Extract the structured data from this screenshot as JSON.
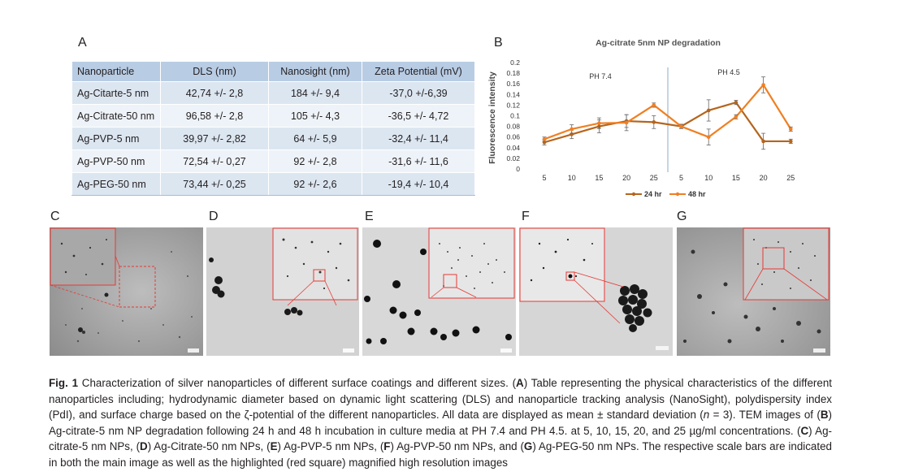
{
  "panel_labels": {
    "a": "A",
    "b": "B",
    "c": "C",
    "d": "D",
    "e": "E",
    "f": "F",
    "g": "G"
  },
  "table": {
    "headers": [
      "Nanoparticle",
      "DLS (nm)",
      "Nanosight (nm)",
      "Zeta Potential (mV)"
    ],
    "rows": [
      [
        "Ag-Citarte-5 nm",
        "42,74 +/- 2,8",
        "184 +/- 9,4",
        "-37,0 +/-6,39"
      ],
      [
        "Ag-Citrate-50 nm",
        "96,58 +/- 2,8",
        "105 +/- 4,3",
        "-36,5 +/- 4,72"
      ],
      [
        "Ag-PVP-5 nm",
        "39,97 +/- 2,82",
        "64 +/- 5,9",
        "-32,4 +/- 11,4"
      ],
      [
        "Ag-PVP-50 nm",
        "72,54 +/- 0,27",
        "92 +/- 2,8",
        "-31,6 +/- 11,6"
      ],
      [
        "Ag-PEG-50 nm",
        "73,44 +/- 0,25",
        "92 +/- 2,6",
        "-19,4 +/- 10,4"
      ]
    ]
  },
  "chart_data": {
    "type": "line",
    "title": "Ag-citrate 5nm NP degradation",
    "ylabel": "Fluorescence intensity",
    "xlabel": "",
    "ylim": [
      0,
      0.2
    ],
    "yticks": [
      "0",
      "0.02",
      "0.04",
      "0.06",
      "0.08",
      "0.1",
      "0.12",
      "0.14",
      "0.16",
      "0.18",
      "0.2"
    ],
    "categories": [
      "5",
      "10",
      "15",
      "20",
      "25",
      "5",
      "10",
      "15",
      "20",
      "25"
    ],
    "annotations": [
      "PH 7.4",
      "PH 4.5"
    ],
    "legend_position": "bottom",
    "series": [
      {
        "name": "24 hr",
        "color": "#b5651d",
        "values": [
          0.05,
          0.065,
          0.08,
          0.09,
          0.088,
          0.08,
          0.11,
          0.125,
          0.052,
          0.052
        ],
        "errors": [
          0.005,
          0.008,
          0.012,
          0.012,
          0.012,
          0.004,
          0.02,
          0.004,
          0.015,
          0.004
        ]
      },
      {
        "name": "48 hr",
        "color": "#f07f22",
        "values": [
          0.056,
          0.075,
          0.086,
          0.087,
          0.12,
          0.08,
          0.06,
          0.098,
          0.158,
          0.075
        ],
        "errors": [
          0.004,
          0.008,
          0.01,
          0.015,
          0.004,
          0.004,
          0.015,
          0.004,
          0.015,
          0.004
        ]
      }
    ]
  },
  "caption": {
    "fig_label": "Fig. 1",
    "part1": " Characterization of silver nanoparticles of different surface coatings and different sizes. (",
    "A": "A",
    "part2": ") Table representing the physical characteristics of the different nanoparticles including; hydrodynamic diameter based on dynamic light scattering (DLS) and nanoparticle tracking analysis (NanoSight), polydispersity index (PdI), and surface charge based on the ζ-potential of the different nanoparticles. All data are displayed as mean ± standard deviation (",
    "n": "n",
    "part3": " = 3). TEM images of (",
    "B": "B",
    "part4": ") Ag-citrate-5 nm NP degradation following 24 h and 48 h incubation in culture media at PH 7.4 and PH 4.5. at 5, 10, 15, 20, and 25 µg/ml concentrations. (",
    "C": "C",
    "part5": ") Ag-citrate-5 nm NPs, (",
    "D": "D",
    "part6": ") Ag-Citrate-50 nm NPs, (",
    "E": "E",
    "part7": ") Ag-PVP-5 nm NPs, (",
    "F": "F",
    "part8": ") Ag-PVP-50 nm NPs, and (",
    "G": "G",
    "part9": ") Ag-PEG-50 nm NPs. The respective scale bars are indicated in both the main image as well as the highlighted (red square) magnified high resolution images"
  },
  "colors": {
    "table_header": "#b8cce4",
    "table_row_a": "#dce6f1",
    "table_row_b": "#eef3f9",
    "highlight": "#e53935"
  }
}
